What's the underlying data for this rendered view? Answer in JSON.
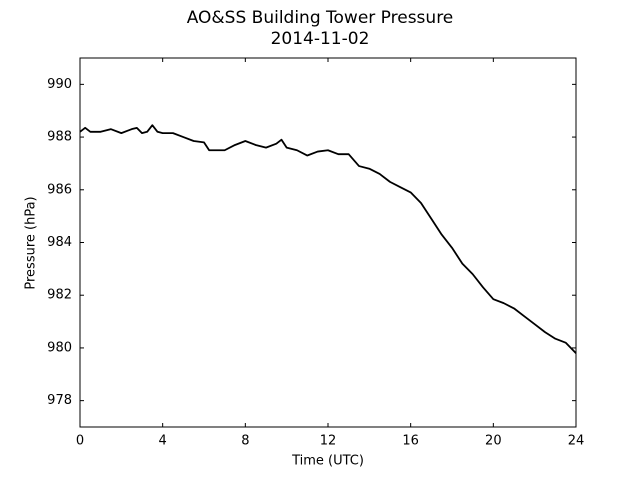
{
  "chart_data": {
    "type": "line",
    "title": "AO&SS Building Tower Pressure",
    "subtitle": "2014-11-02",
    "x_label": "Time (UTC)",
    "y_label": "Pressure (hPa)",
    "x": [
      0,
      0.25,
      0.5,
      1,
      1.5,
      2,
      2.5,
      2.75,
      3,
      3.25,
      3.5,
      3.75,
      4,
      4.5,
      5,
      5.5,
      6,
      6.25,
      7,
      7.5,
      8,
      8.5,
      9,
      9.5,
      9.75,
      10,
      10.5,
      11,
      11.5,
      12,
      12.5,
      13,
      13.5,
      14,
      14.5,
      15,
      15.5,
      16,
      16.5,
      17,
      17.5,
      18,
      18.5,
      19,
      19.5,
      20,
      20.5,
      21,
      21.5,
      22,
      22.5,
      23,
      23.5,
      24
    ],
    "series": [
      {
        "color": "#000000",
        "values": [
          988.2,
          988.35,
          988.2,
          988.2,
          988.3,
          988.15,
          988.3,
          988.35,
          988.15,
          988.2,
          988.45,
          988.2,
          988.15,
          988.15,
          988.0,
          987.85,
          987.8,
          987.5,
          987.5,
          987.7,
          987.85,
          987.7,
          987.6,
          987.75,
          987.9,
          987.6,
          987.5,
          987.3,
          987.45,
          987.5,
          987.35,
          987.35,
          986.9,
          986.8,
          986.6,
          986.3,
          986.1,
          985.9,
          985.5,
          984.9,
          984.3,
          983.8,
          983.2,
          982.8,
          982.3,
          981.85,
          981.7,
          981.5,
          981.2,
          980.9,
          980.6,
          980.35,
          980.2,
          979.8
        ]
      }
    ],
    "xlim": [
      0,
      24
    ],
    "xticks": [
      0,
      4,
      8,
      12,
      16,
      20,
      24
    ],
    "ylim": [
      977,
      991
    ],
    "yticks": [
      978,
      980,
      982,
      984,
      986,
      988,
      990
    ],
    "grid": false
  }
}
